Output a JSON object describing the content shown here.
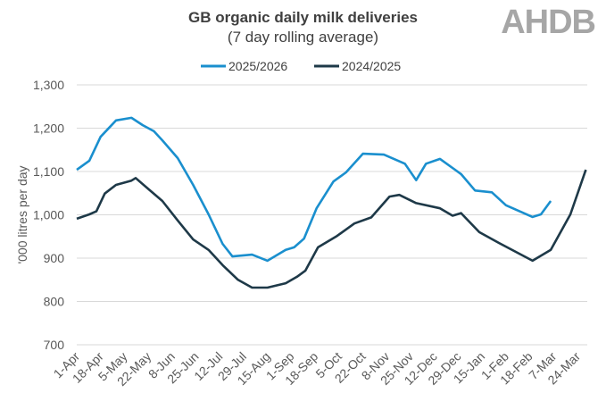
{
  "chart_data": {
    "type": "line",
    "title": "GB organic daily milk deliveries",
    "subtitle": "(7 day rolling average)",
    "xlabel": "",
    "ylabel": "'000 litres per day",
    "ylim": [
      700,
      1300
    ],
    "yticks": [
      "700",
      "800",
      "900",
      "1,000",
      "1,100",
      "1,200",
      "1,300"
    ],
    "ytick_values": [
      700,
      800,
      900,
      1000,
      1100,
      1200,
      1300
    ],
    "xticks": [
      "1-Apr",
      "18-Apr",
      "5-May",
      "22-May",
      "8-Jun",
      "25-Jun",
      "12-Jul",
      "29-Jul",
      "15-Aug",
      "1-Sep",
      "18-Sep",
      "5-Oct",
      "22-Oct",
      "8-Nov",
      "25-Nov",
      "12-Dec",
      "29-Dec",
      "15-Jan",
      "1-Feb",
      "18-Feb",
      "7-Mar",
      "24-Mar"
    ],
    "grid": true,
    "legend_position": "top",
    "series": [
      {
        "name": "2025/2026",
        "color": "#1a8fce",
        "x": [
          "1-Apr",
          "10-Apr",
          "18-Apr",
          "29-Apr",
          "10-May",
          "18-May",
          "26-May",
          "1-Jun",
          "12-Jun",
          "23-Jun",
          "4-Jul",
          "14-Jul",
          "21-Jul",
          "4-Aug",
          "15-Aug",
          "28-Aug",
          "3-Sep",
          "10-Sep",
          "19-Sep",
          "1-Oct",
          "10-Oct",
          "22-Oct",
          "6-Nov",
          "21-Nov",
          "29-Nov",
          "6-Dec",
          "16-Dec",
          "31-Dec",
          "10-Jan",
          "22-Jan",
          "1-Feb",
          "20-Feb",
          "26-Feb",
          "5-Mar"
        ],
        "values": [
          1104,
          1125,
          1180,
          1218,
          1224,
          1207,
          1193,
          1172,
          1131,
          1069,
          1001,
          933,
          904,
          908,
          894,
          919,
          925,
          945,
          1015,
          1077,
          1098,
          1141,
          1139,
          1118,
          1080,
          1118,
          1129,
          1094,
          1056,
          1052,
          1022,
          995,
          1001,
          1032
        ]
      },
      {
        "name": "2024/2025",
        "color": "#1e3948",
        "x": [
          "1-Apr",
          "10-Apr",
          "15-Apr",
          "21-Apr",
          "29-Apr",
          "10-May",
          "13-May",
          "23-May",
          "1-Jun",
          "12-Jun",
          "23-Jun",
          "4-Jul",
          "14-Jul",
          "25-Jul",
          "4-Aug",
          "15-Aug",
          "28-Aug",
          "5-Sep",
          "11-Sep",
          "20-Sep",
          "3-Oct",
          "16-Oct",
          "28-Oct",
          "10-Nov",
          "17-Nov",
          "29-Nov",
          "16-Dec",
          "25-Dec",
          "31-Dec",
          "13-Jan",
          "27-Jan",
          "20-Feb",
          "5-Mar",
          "19-Mar",
          "30-Mar"
        ],
        "values": [
          991,
          1001,
          1008,
          1049,
          1069,
          1079,
          1085,
          1057,
          1032,
          987,
          943,
          919,
          884,
          850,
          832,
          832,
          842,
          857,
          871,
          925,
          950,
          980,
          994,
          1042,
          1046,
          1027,
          1015,
          998,
          1004,
          960,
          935,
          894,
          919,
          1001,
          1104
        ]
      }
    ]
  },
  "logo_text": "AHDB"
}
